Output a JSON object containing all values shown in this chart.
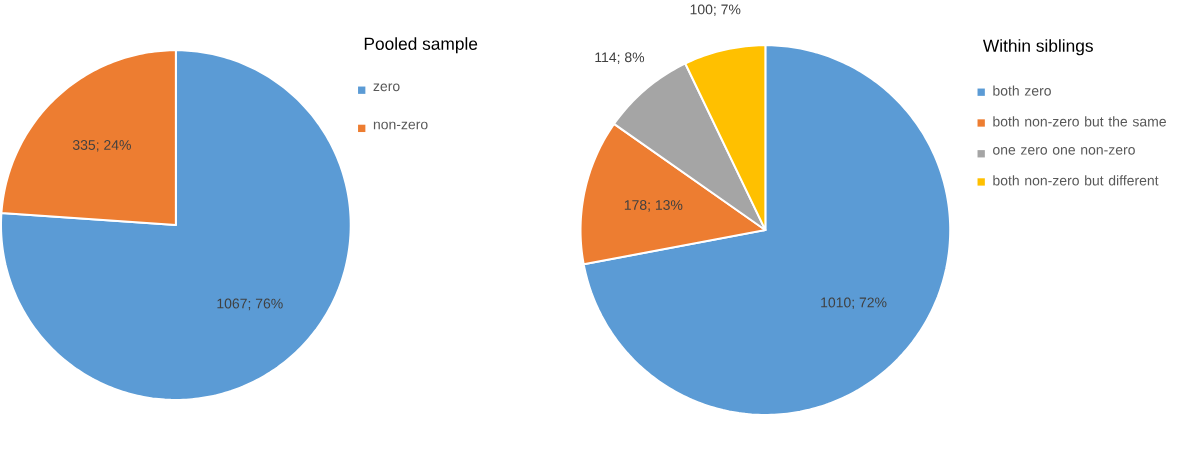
{
  "chart_data": [
    {
      "type": "pie",
      "title": "Pooled sample",
      "categories": [
        "zero",
        "non-zero"
      ],
      "values": [
        1067,
        335
      ],
      "colors": [
        "#5b9bd5",
        "#ed7d31"
      ],
      "value_labels": [
        "1067; 76%",
        "335; 24%"
      ],
      "legend": "right"
    },
    {
      "type": "pie",
      "title": "Within siblings",
      "categories": [
        "both zero",
        "both non-zero but the same",
        "one zero one non-zero",
        "both non-zero but different"
      ],
      "values": [
        1010,
        178,
        114,
        100
      ],
      "colors": [
        "#5b9bd5",
        "#ed7d31",
        "#a5a5a5",
        "#ffc000"
      ],
      "value_labels": [
        "1010; 72%",
        "178; 13%",
        "114; 8%",
        "100; 7%"
      ],
      "legend": "right"
    }
  ]
}
